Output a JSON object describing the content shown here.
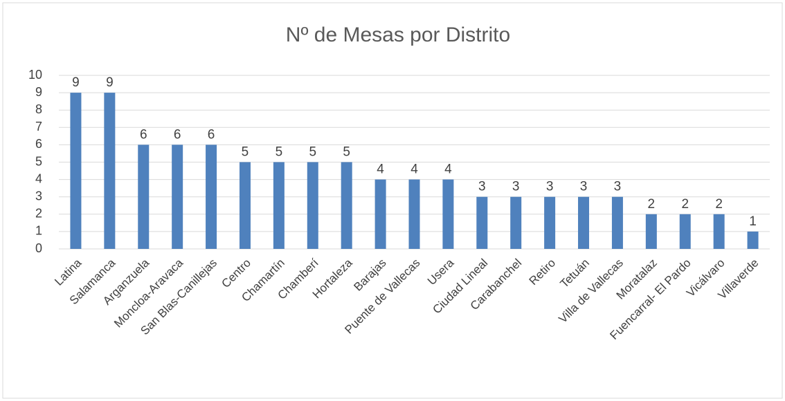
{
  "chart_data": {
    "type": "bar",
    "title": "Nº de Mesas por Distrito",
    "categories": [
      "Latina",
      "Salamanca",
      "Arganzuela",
      "Moncloa-Aravaca",
      "San Blas-Canillejas",
      "Centro",
      "Chamartín",
      "Chamberí",
      "Hortaleza",
      "Barajas",
      "Puente de Vallecas",
      "Usera",
      "Ciudad Lineal",
      "Carabanchel",
      "Retiro",
      "Tetuán",
      "Villa de Vallecas",
      "Moratalaz",
      "Fuencarral- El Pardo",
      "Vicálvaro",
      "Villaverde"
    ],
    "values": [
      9,
      9,
      6,
      6,
      6,
      5,
      5,
      5,
      5,
      4,
      4,
      4,
      3,
      3,
      3,
      3,
      3,
      2,
      2,
      2,
      1
    ],
    "color": "#4f81bd",
    "ylim": [
      0,
      10
    ],
    "yticks": [
      0,
      1,
      2,
      3,
      4,
      5,
      6,
      7,
      8,
      9,
      10
    ],
    "grid": true
  }
}
